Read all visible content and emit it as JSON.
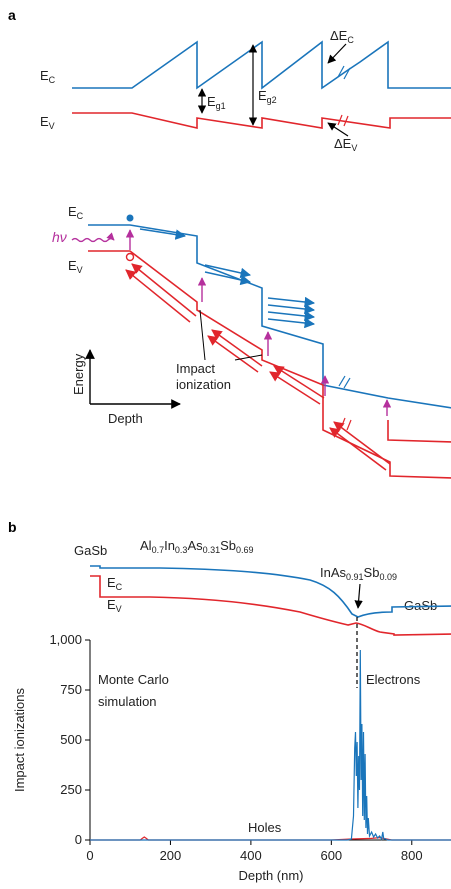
{
  "panel_a": {
    "label": "a",
    "top": {
      "ec": "E",
      "ec_sub": "C",
      "ev": "E",
      "ev_sub": "V",
      "eg1": "E",
      "eg1_sub": "g1",
      "eg2": "E",
      "eg2_sub": "g2",
      "dec": "ΔE",
      "dec_sub": "C",
      "dev": "ΔE",
      "dev_sub": "V"
    },
    "bottom": {
      "ec": "E",
      "ec_sub": "C",
      "ev": "E",
      "ev_sub": "V",
      "hv": "hν",
      "impact_line1": "Impact",
      "impact_line2": "ionization",
      "energy_axis": "Energy",
      "depth_axis": "Depth"
    }
  },
  "panel_b": {
    "label": "b",
    "left_material": "GaSb",
    "barrier_material": "Al0.7In0.3As0.31Sb0.69",
    "barrier_parts": {
      "a": "Al",
      "a_sub": "0.7",
      "b": "In",
      "b_sub": "0.3",
      "c": "As",
      "c_sub": "0.31",
      "d": "Sb",
      "d_sub": "0.69"
    },
    "well_material": "InAs0.91Sb0.09",
    "well_parts": {
      "a": "InAs",
      "a_sub": "0.91",
      "b": "Sb",
      "b_sub": "0.09"
    },
    "right_material": "GaSb",
    "ec": "E",
    "ec_sub": "C",
    "ev": "E",
    "ev_sub": "V",
    "sim_line1": "Monte Carlo",
    "sim_line2": "simulation",
    "electrons": "Electrons",
    "holes": "Holes"
  },
  "chart_data": {
    "type": "line",
    "xlabel": "Depth (nm)",
    "ylabel": "Impact ionizations",
    "xlim": [
      0,
      900
    ],
    "ylim": [
      0,
      1000
    ],
    "x_ticks": [
      "0",
      "200",
      "400",
      "600",
      "800"
    ],
    "y_ticks": [
      "0",
      "250",
      "500",
      "750",
      "1,000"
    ],
    "series": [
      {
        "name": "Electrons",
        "color": "#1a75bb",
        "x": [
          0,
          640,
          650,
          655,
          658,
          660,
          662,
          664,
          666,
          668,
          670,
          672,
          674,
          676,
          678,
          680,
          682,
          684,
          686,
          688,
          690,
          692,
          695,
          700,
          705,
          710,
          715,
          720,
          725,
          728,
          730,
          732,
          735,
          740,
          900
        ],
        "y": [
          0,
          0,
          5,
          120,
          460,
          540,
          320,
          490,
          160,
          420,
          250,
          950,
          300,
          580,
          120,
          540,
          100,
          430,
          60,
          220,
          30,
          110,
          20,
          40,
          15,
          30,
          10,
          20,
          5,
          40,
          10,
          5,
          5,
          0,
          0
        ]
      },
      {
        "name": "Holes",
        "color": "#e1262c",
        "x": [
          0,
          125,
          130,
          135,
          140,
          145,
          600,
          650,
          700,
          720,
          750,
          900
        ],
        "y": [
          0,
          0,
          8,
          15,
          8,
          0,
          0,
          5,
          8,
          12,
          0,
          0
        ]
      }
    ]
  }
}
